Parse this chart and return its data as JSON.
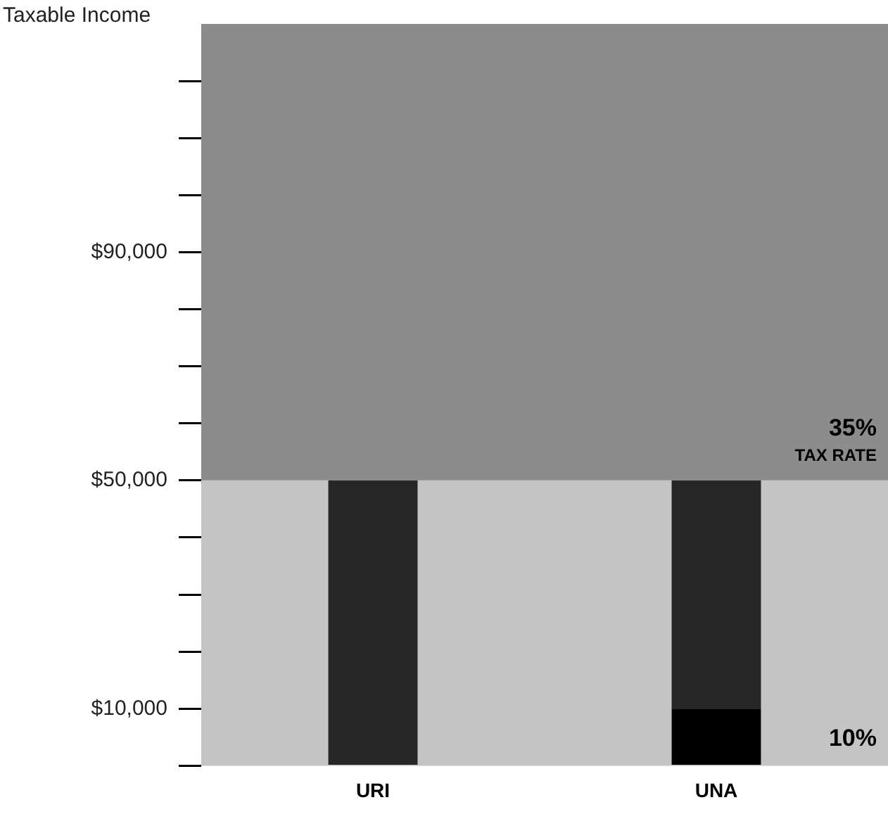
{
  "chart_data": {
    "type": "bar",
    "ylabel": "Taxable Income",
    "categories": [
      "URI",
      "UNA"
    ],
    "stacked": true,
    "series": [
      {
        "color": "#000000",
        "values": [
          0,
          10000
        ]
      },
      {
        "color": "#262626",
        "values": [
          50000,
          40000
        ]
      }
    ],
    "ylim": [
      0,
      130000
    ],
    "yticks": [
      {
        "value": 0,
        "label": null
      },
      {
        "value": 10000,
        "label": "$10,000"
      },
      {
        "value": 20000,
        "label": null
      },
      {
        "value": 30000,
        "label": null
      },
      {
        "value": 40000,
        "label": null
      },
      {
        "value": 50000,
        "label": "$50,000"
      },
      {
        "value": 60000,
        "label": null
      },
      {
        "value": 70000,
        "label": null
      },
      {
        "value": 80000,
        "label": null
      },
      {
        "value": 90000,
        "label": "$90,000"
      },
      {
        "value": 100000,
        "label": null
      },
      {
        "value": 110000,
        "label": null
      },
      {
        "value": 120000,
        "label": null
      }
    ],
    "bands": [
      {
        "axis": "y",
        "from": 0,
        "to": 50000,
        "label": "10%",
        "color": "#c4c4c4"
      },
      {
        "axis": "y",
        "from": 50000,
        "to": 130000,
        "label": "35%",
        "color": "#8c8c8c"
      }
    ],
    "annotations": [
      "TAX RATE"
    ],
    "grid": false,
    "legend": false
  }
}
